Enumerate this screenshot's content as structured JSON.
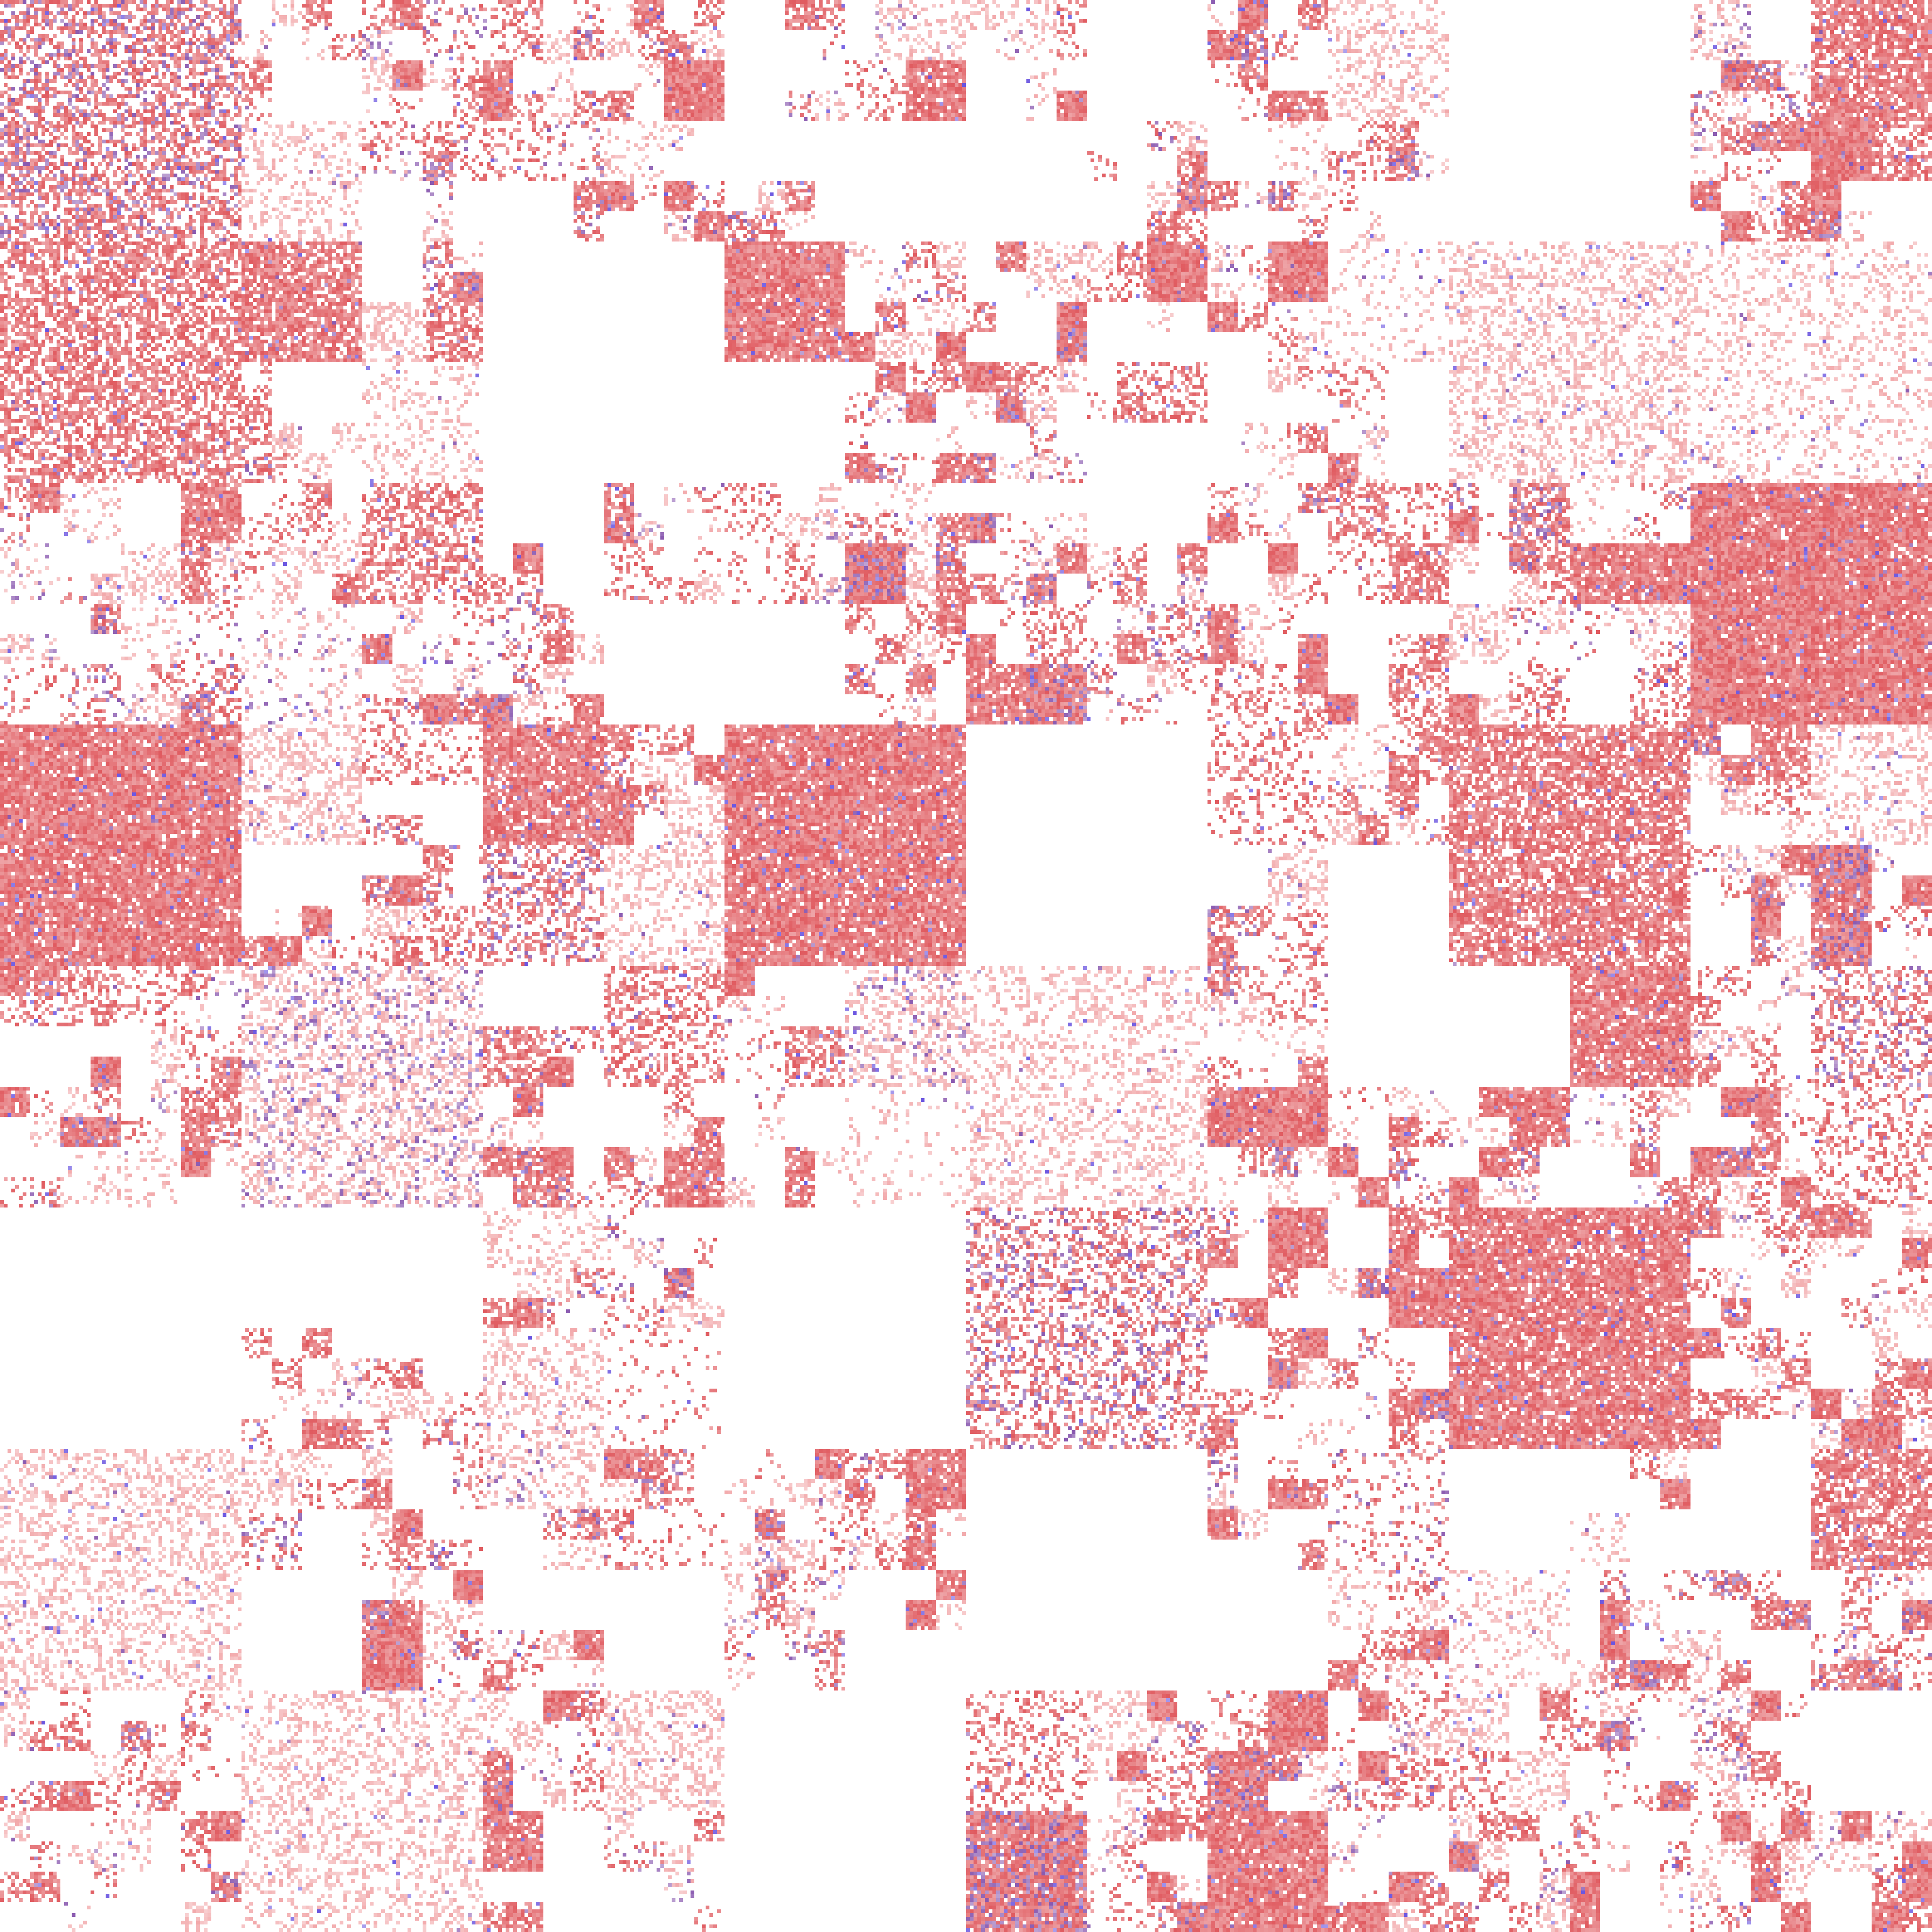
{
  "image": {
    "description_kind": "pixel-noise-mosaic",
    "palette": {
      "background": "#ffffff",
      "primary": "#e05a5f",
      "primary_light": "#f2a8aa",
      "secondary": "#8a5ab0",
      "accent_blue": "#6a55e0"
    },
    "coverage": {
      "red_density": 0.35,
      "purple_density": 0.04,
      "blue_density": 0.01
    }
  }
}
